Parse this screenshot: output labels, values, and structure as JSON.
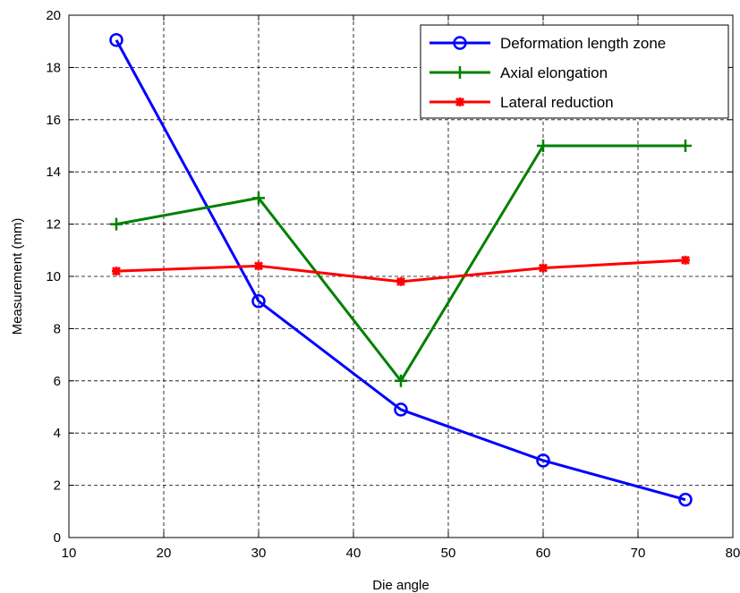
{
  "chart_data": {
    "type": "line",
    "xlabel": "Die angle",
    "ylabel": "Measurement (mm)",
    "xlim": [
      10,
      80
    ],
    "ylim": [
      0,
      20
    ],
    "xticks": [
      10,
      20,
      30,
      40,
      50,
      60,
      70,
      80
    ],
    "yticks": [
      0,
      2,
      4,
      6,
      8,
      10,
      12,
      14,
      16,
      18,
      20
    ],
    "grid": true,
    "legend_position": "top-right",
    "x": [
      15,
      30,
      45,
      60,
      75
    ],
    "series": [
      {
        "name": "Deformation length zone",
        "values": [
          19.05,
          9.05,
          4.9,
          2.95,
          1.45
        ],
        "color": "#0000ff",
        "marker": "circle"
      },
      {
        "name": "Axial elongation",
        "values": [
          12.0,
          13.0,
          6.0,
          15.0,
          15.0
        ],
        "color": "#008000",
        "marker": "plus"
      },
      {
        "name": "Lateral reduction",
        "values": [
          10.2,
          10.4,
          9.8,
          10.32,
          10.62
        ],
        "color": "#ff0000",
        "marker": "star"
      }
    ]
  }
}
